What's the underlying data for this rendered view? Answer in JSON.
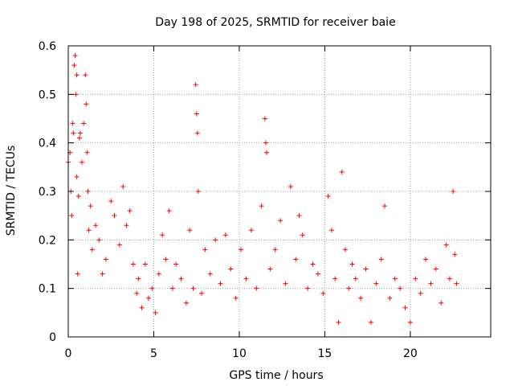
{
  "chart_data": {
    "type": "scatter",
    "title": "Day 198 of 2025, SRMTID for receiver baie",
    "xlabel": "GPS time / hours",
    "ylabel": "SRMTID / TECUs",
    "xlim": [
      0,
      24.7
    ],
    "ylim": [
      0,
      0.6
    ],
    "xticks": [
      0,
      5,
      10,
      15,
      20
    ],
    "yticks": [
      0,
      0.1,
      0.2,
      0.3,
      0.4,
      0.5,
      0.6
    ],
    "grid": true,
    "marker": "+",
    "color": "#ff0000",
    "series": [
      {
        "name": "SRMTID",
        "x": [
          0.0,
          0.1,
          0.15,
          0.2,
          0.25,
          0.3,
          0.35,
          0.4,
          0.45,
          0.5,
          0.5,
          0.55,
          0.6,
          0.65,
          0.7,
          0.8,
          0.9,
          1.0,
          1.05,
          1.1,
          1.15,
          1.2,
          1.3,
          1.4,
          1.6,
          1.8,
          2.0,
          2.2,
          2.5,
          2.7,
          3.0,
          3.2,
          3.4,
          3.6,
          3.8,
          4.0,
          4.1,
          4.3,
          4.5,
          4.7,
          4.9,
          5.1,
          5.3,
          5.5,
          5.7,
          5.9,
          6.1,
          6.3,
          6.6,
          6.9,
          7.1,
          7.3,
          7.45,
          7.5,
          7.55,
          7.6,
          7.8,
          8.0,
          8.3,
          8.6,
          8.9,
          9.2,
          9.5,
          9.8,
          10.1,
          10.4,
          10.7,
          11.0,
          11.3,
          11.5,
          11.55,
          11.6,
          11.8,
          12.1,
          12.4,
          12.7,
          13.0,
          13.3,
          13.5,
          13.7,
          14.0,
          14.3,
          14.6,
          14.9,
          15.2,
          15.4,
          15.6,
          15.8,
          16.0,
          16.2,
          16.4,
          16.6,
          16.8,
          17.1,
          17.4,
          17.7,
          18.0,
          18.3,
          18.5,
          18.8,
          19.1,
          19.4,
          19.7,
          20.0,
          20.3,
          20.6,
          20.9,
          21.2,
          21.5,
          21.8,
          22.1,
          22.3,
          22.5,
          22.6,
          22.7
        ],
        "y": [
          0.36,
          0.38,
          0.3,
          0.25,
          0.44,
          0.42,
          0.56,
          0.58,
          0.5,
          0.54,
          0.33,
          0.13,
          0.29,
          0.41,
          0.42,
          0.36,
          0.44,
          0.54,
          0.48,
          0.38,
          0.3,
          0.22,
          0.27,
          0.18,
          0.23,
          0.2,
          0.13,
          0.16,
          0.28,
          0.25,
          0.19,
          0.31,
          0.23,
          0.26,
          0.15,
          0.09,
          0.12,
          0.06,
          0.15,
          0.08,
          0.1,
          0.05,
          0.13,
          0.21,
          0.16,
          0.26,
          0.1,
          0.15,
          0.12,
          0.07,
          0.22,
          0.1,
          0.52,
          0.46,
          0.42,
          0.3,
          0.09,
          0.18,
          0.13,
          0.2,
          0.11,
          0.21,
          0.14,
          0.08,
          0.18,
          0.12,
          0.22,
          0.1,
          0.27,
          0.45,
          0.4,
          0.38,
          0.14,
          0.18,
          0.24,
          0.11,
          0.31,
          0.16,
          0.25,
          0.21,
          0.1,
          0.15,
          0.13,
          0.09,
          0.29,
          0.22,
          0.12,
          0.03,
          0.34,
          0.18,
          0.1,
          0.15,
          0.12,
          0.08,
          0.14,
          0.03,
          0.11,
          0.16,
          0.27,
          0.08,
          0.12,
          0.1,
          0.06,
          0.03,
          0.12,
          0.09,
          0.16,
          0.11,
          0.14,
          0.07,
          0.19,
          0.12,
          0.3,
          0.17,
          0.11
        ]
      }
    ]
  }
}
